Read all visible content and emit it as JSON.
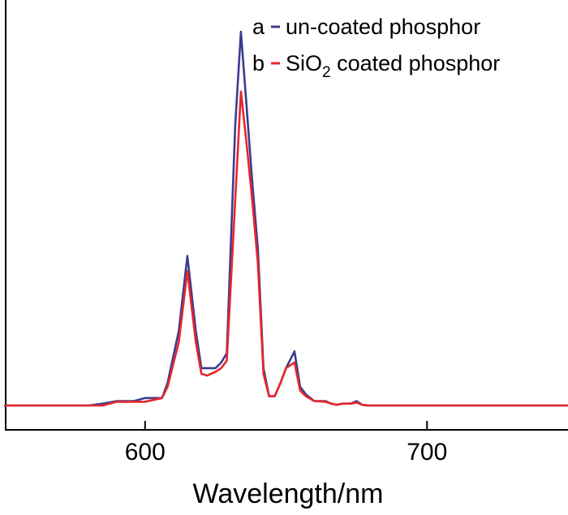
{
  "chart_data": {
    "type": "line",
    "xlabel": "Wavelength/nm",
    "ylabel": "",
    "xlim": [
      550,
      750
    ],
    "ylim": [
      0,
      1.08
    ],
    "x_ticks": [
      600,
      700
    ],
    "grid": false,
    "legend_position": "top-right",
    "series": [
      {
        "letter": "a",
        "name": "un-coated phosphor",
        "color": "#3a3d8f",
        "x": [
          550,
          580,
          585,
          590,
          596,
          600,
          606,
          608,
          612,
          615,
          618,
          620,
          622,
          625,
          627,
          629,
          632,
          634,
          636,
          638,
          640,
          642,
          644,
          646,
          648,
          650,
          651,
          653,
          655,
          657,
          660,
          664,
          666,
          668,
          670,
          673,
          675,
          677,
          679,
          685,
          700,
          750
        ],
        "y": [
          0,
          0,
          0.005,
          0.012,
          0.012,
          0.02,
          0.02,
          0.06,
          0.2,
          0.4,
          0.2,
          0.1,
          0.1,
          0.1,
          0.115,
          0.14,
          0.75,
          1.0,
          0.8,
          0.6,
          0.42,
          0.1,
          0.025,
          0.025,
          0.06,
          0.1,
          0.115,
          0.145,
          0.05,
          0.03,
          0.012,
          0.012,
          0.005,
          0.002,
          0.005,
          0.005,
          0.012,
          0.002,
          0,
          0,
          0,
          0
        ]
      },
      {
        "letter": "b",
        "name": "SiO2 coated phosphor",
        "name_parts": {
          "pre": "SiO",
          "sub": "2",
          "post": " coated phosphor"
        },
        "color": "#e8262b",
        "x": [
          550,
          585,
          590,
          600,
          606,
          608,
          612,
          615,
          618,
          620,
          622,
          625,
          627,
          629,
          632,
          634,
          636,
          638,
          640,
          642,
          644,
          646,
          648,
          650,
          651,
          653,
          655,
          657,
          660,
          664,
          666,
          668,
          670,
          673,
          675,
          677,
          679,
          685,
          700,
          750
        ],
        "y": [
          0,
          0,
          0.01,
          0.01,
          0.02,
          0.05,
          0.17,
          0.36,
          0.17,
          0.085,
          0.08,
          0.09,
          0.1,
          0.12,
          0.55,
          0.84,
          0.7,
          0.55,
          0.38,
          0.085,
          0.025,
          0.025,
          0.06,
          0.1,
          0.105,
          0.115,
          0.04,
          0.025,
          0.012,
          0.01,
          0.005,
          0.002,
          0.005,
          0.005,
          0.008,
          0.002,
          0,
          0,
          0,
          0
        ]
      }
    ]
  }
}
